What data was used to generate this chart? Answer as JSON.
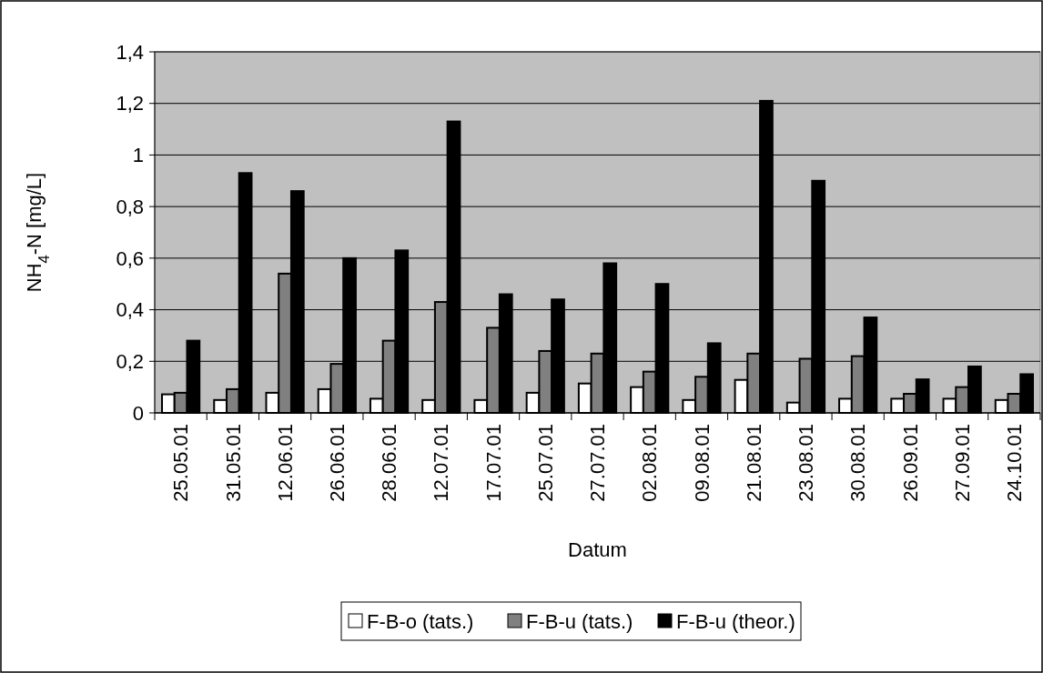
{
  "chart_data": {
    "type": "bar",
    "xlabel": "Datum",
    "ylabel": "NH$_{4}$-N [mg/L]",
    "categories": [
      "25.05.01",
      "31.05.01",
      "12.06.01",
      "26.06.01",
      "28.06.01",
      "12.07.01",
      "17.07.01",
      "25.07.01",
      "27.07.01",
      "02.08.01",
      "09.08.01",
      "21.08.01",
      "23.08.01",
      "30.08.01",
      "26.09.01",
      "27.09.01",
      "24.10.01"
    ],
    "series": [
      {
        "name": "F-B-o (tats.)",
        "color": "#ffffff",
        "values": [
          0.072,
          0.05,
          0.078,
          0.092,
          0.055,
          0.05,
          0.05,
          0.078,
          0.114,
          0.1,
          0.05,
          0.128,
          0.04,
          0.055,
          0.055,
          0.055,
          0.05
        ]
      },
      {
        "name": "F-B-u (tats.)",
        "color": "#808080",
        "values": [
          0.078,
          0.092,
          0.54,
          0.19,
          0.28,
          0.43,
          0.33,
          0.24,
          0.23,
          0.16,
          0.14,
          0.23,
          0.21,
          0.22,
          0.074,
          0.1,
          0.074
        ]
      },
      {
        "name": "F-B-u (theor.)",
        "color": "#000000",
        "values": [
          0.28,
          0.93,
          0.86,
          0.6,
          0.63,
          1.13,
          0.46,
          0.44,
          0.58,
          0.5,
          0.27,
          1.21,
          0.9,
          0.37,
          0.13,
          0.18,
          0.15
        ]
      }
    ],
    "ylim": [
      0,
      1.4
    ],
    "yticks": [
      0,
      {
        "value": 0.2,
        "label": "0,2"
      },
      {
        "value": 0.4,
        "label": "0,4"
      },
      {
        "value": 0.6,
        "label": "0,6"
      },
      {
        "value": 0.8,
        "label": "0,8"
      },
      1,
      {
        "value": 1.2,
        "label": "1,2"
      },
      {
        "value": 1.4,
        "label": "1,4"
      }
    ],
    "grid": "y",
    "legend": "bottom"
  }
}
